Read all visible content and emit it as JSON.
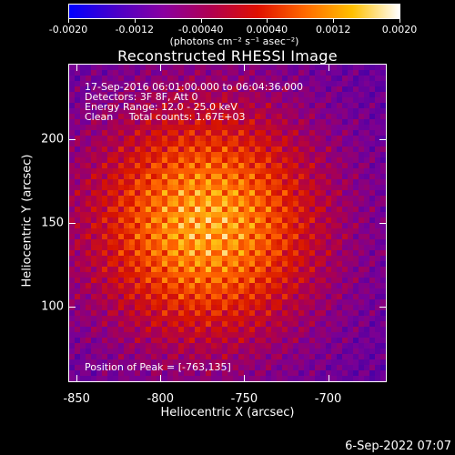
{
  "colorbar": {
    "tick_labels": [
      "-0.0020",
      "-0.0012",
      "-0.00040",
      "0.00040",
      "0.0012",
      "0.0020"
    ],
    "tick_values": [
      -0.002,
      -0.0012,
      -0.0004,
      0.0004,
      0.0012,
      0.002
    ],
    "range": [
      -0.002,
      0.002
    ],
    "units": "(photons cm⁻² s⁻¹ asec⁻²)",
    "colors": [
      "#0000ff",
      "#4b00c8",
      "#8a00a0",
      "#b00050",
      "#e01000",
      "#ff6a00",
      "#ffc000",
      "#ffffff"
    ]
  },
  "chart_data": {
    "type": "heatmap",
    "title": "Reconstructed RHESSI Image",
    "xlabel": "Heliocentric X (arcsec)",
    "ylabel": "Heliocentric Y (arcsec)",
    "xlim": [
      -855,
      -665
    ],
    "ylim": [
      55,
      245
    ],
    "xticks": [
      -850,
      -800,
      -750,
      -700
    ],
    "xtick_labels": [
      "-850",
      "-800",
      "-750",
      "-700"
    ],
    "yticks": [
      100,
      150,
      200
    ],
    "ytick_labels": [
      "100",
      "150",
      "200"
    ],
    "peak": {
      "x": -763,
      "y": 135
    },
    "annotations": [
      "17-Sep-2016 06:01:00.000 to 06:04:36.000",
      "Detectors: 3F 8F, Att 0",
      "Energy Range: 12.0 - 25.0 keV",
      "Clean     Total counts: 1.67E+03"
    ],
    "peak_label": "Position of Peak = [-763,135]"
  },
  "footer": {
    "date": "6-Sep-2022 07:07"
  }
}
